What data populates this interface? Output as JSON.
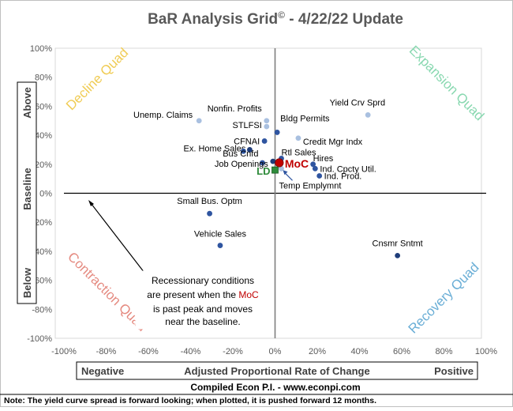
{
  "chart_data": {
    "type": "scatter",
    "title": "BaR Analysis Grid",
    "title_mark": "©",
    "title_suffix": " - 4/22/22 Update",
    "xlim": [
      -100,
      100
    ],
    "ylim": [
      -100,
      100
    ],
    "x_ticks": [
      "-100%",
      "-80%",
      "-60%",
      "-40%",
      "-20%",
      "0%",
      "20%",
      "40%",
      "60%",
      "80%",
      "100%"
    ],
    "y_ticks": [
      "100%",
      "80%",
      "60%",
      "40%",
      "20%",
      "0%",
      "-20%",
      "-40%",
      "-60%",
      "-80%",
      "-100%"
    ],
    "xlabel": {
      "left": "Negative",
      "center": "Adjusted Proportional Rate of Change",
      "right": "Positive"
    },
    "ylabel": {
      "top": "Above",
      "middle": "Baseline",
      "bottom": "Below"
    },
    "quadrants": {
      "top_left": {
        "label": "Decline Quad",
        "color": "#f0cc55"
      },
      "top_right": {
        "label": "Expansion Quad",
        "color": "#88d8b0"
      },
      "bottom_left": {
        "label": "Contraction Quad",
        "color": "#e58a80"
      },
      "bottom_right": {
        "label": "Recovery Quad",
        "color": "#6aaed6"
      }
    },
    "points": [
      {
        "label": "Unemp. Claims",
        "x": -36,
        "y": 50,
        "color": "#a9c0e0"
      },
      {
        "label": "Nonfin. Profits",
        "x": -4,
        "y": 50,
        "color": "#a9c0e0"
      },
      {
        "label": "STLFSI",
        "x": -4,
        "y": 46,
        "color": "#a9c0e0"
      },
      {
        "label": "Bldg Permits",
        "x": 1,
        "y": 42,
        "color": "#2f55a0"
      },
      {
        "label": "CFNAI",
        "x": -5,
        "y": 36,
        "color": "#2f55a0"
      },
      {
        "label": "Credit Mgr Indx",
        "x": 11,
        "y": 38,
        "color": "#a9c0e0"
      },
      {
        "label": "Yield Crv Sprd",
        "x": 44,
        "y": 54,
        "color": "#a9c0e0"
      },
      {
        "label": "Ex. Home Sales",
        "x": -12,
        "y": 30,
        "color": "#1f3d7a"
      },
      {
        "label": "",
        "x": -15,
        "y": 29,
        "color": "#2f55a0"
      },
      {
        "label": "Bus Cnfd",
        "x": -6,
        "y": 21,
        "color": "#2f55a0"
      },
      {
        "label": "Job Openings",
        "x": -1,
        "y": 22,
        "color": "#1f3d7a"
      },
      {
        "label": "Rtl Sales",
        "x": 3,
        "y": 24,
        "color": "#2f55a0"
      },
      {
        "label": "Hires",
        "x": 18,
        "y": 20,
        "color": "#2f55a0"
      },
      {
        "label": "Ind. Cpcty Util.",
        "x": 19,
        "y": 17,
        "color": "#2f55a0"
      },
      {
        "label": "Ind. Prod.",
        "x": 21,
        "y": 12,
        "color": "#2f55a0"
      },
      {
        "label": "Temp Emplymnt",
        "x": 3,
        "y": 17,
        "color": "#a9c0e0"
      },
      {
        "label": "Small Bus. Optm",
        "x": -31,
        "y": -14,
        "color": "#2f55a0"
      },
      {
        "label": "Vehicle Sales",
        "x": -26,
        "y": -36,
        "color": "#2f55a0"
      },
      {
        "label": "Cnsmr Sntmt",
        "x": 58,
        "y": -43,
        "color": "#1f3d7a"
      }
    ],
    "markers": [
      {
        "label": "MoC",
        "x": 2,
        "y": 21,
        "color": "#c00000"
      },
      {
        "label": "LD",
        "x": 0,
        "y": 16,
        "color": "#2e8b3a"
      }
    ],
    "annotation": {
      "lines": [
        "Recessionary conditions",
        "are present when the ",
        "is past peak and moves",
        "near the baseline."
      ],
      "highlight": "MoC",
      "highlight_color": "#c00000"
    }
  },
  "footer": {
    "credit": "Compiled Econ P.I. - www.econpi.com",
    "note": "Note: The yield curve spread is forward looking; when plotted, it is pushed forward 12 months."
  }
}
